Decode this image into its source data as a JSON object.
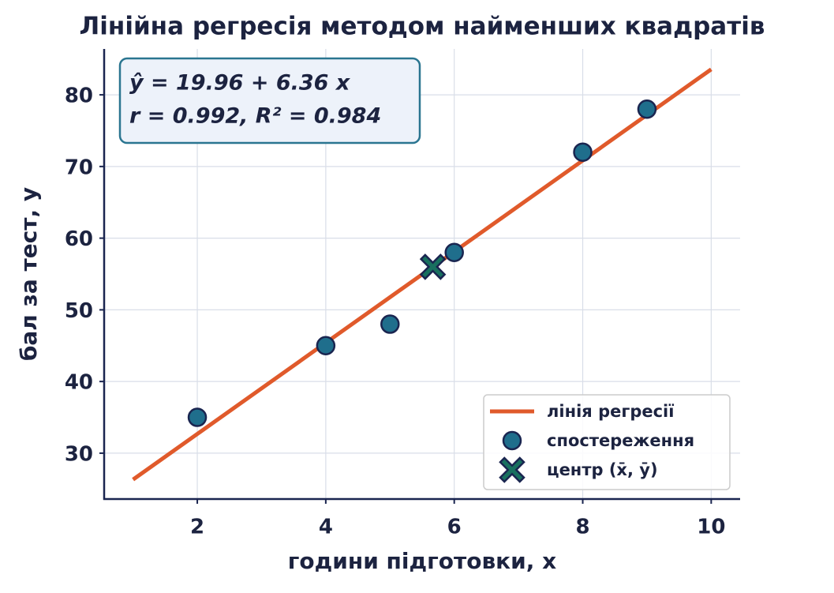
{
  "chart_data": {
    "type": "scatter",
    "title": "Лінійна регресія методом найменших квадратів",
    "xlabel": "години підготовки, x",
    "ylabel": "бал за тест, y",
    "annotations": [
      "ŷ = 19.96 + 6.36 x",
      "r = 0.992,  R² = 0.984"
    ],
    "xlim": [
      0.55,
      10.45
    ],
    "xticks": [
      2,
      4,
      6,
      8,
      10
    ],
    "ylim": [
      23.6,
      86.4
    ],
    "yticks": [
      30,
      40,
      50,
      60,
      70,
      80
    ],
    "grid": true,
    "legend": "lower right",
    "series": [
      {
        "name": "лінія регресії",
        "mark": "line",
        "color": "#e05a2b",
        "x": [
          1,
          10
        ],
        "values": [
          26.32,
          83.56
        ]
      },
      {
        "name": "спостереження",
        "mark": "circle",
        "color": "#1f6e8c",
        "x": [
          2,
          4,
          5,
          6,
          8,
          9
        ],
        "values": [
          35,
          45,
          48,
          58,
          72,
          78
        ]
      },
      {
        "name": "центр (x̄, ȳ)",
        "mark": "cross",
        "color": "#18705f",
        "x": [
          5.667
        ],
        "values": [
          56
        ]
      }
    ]
  }
}
